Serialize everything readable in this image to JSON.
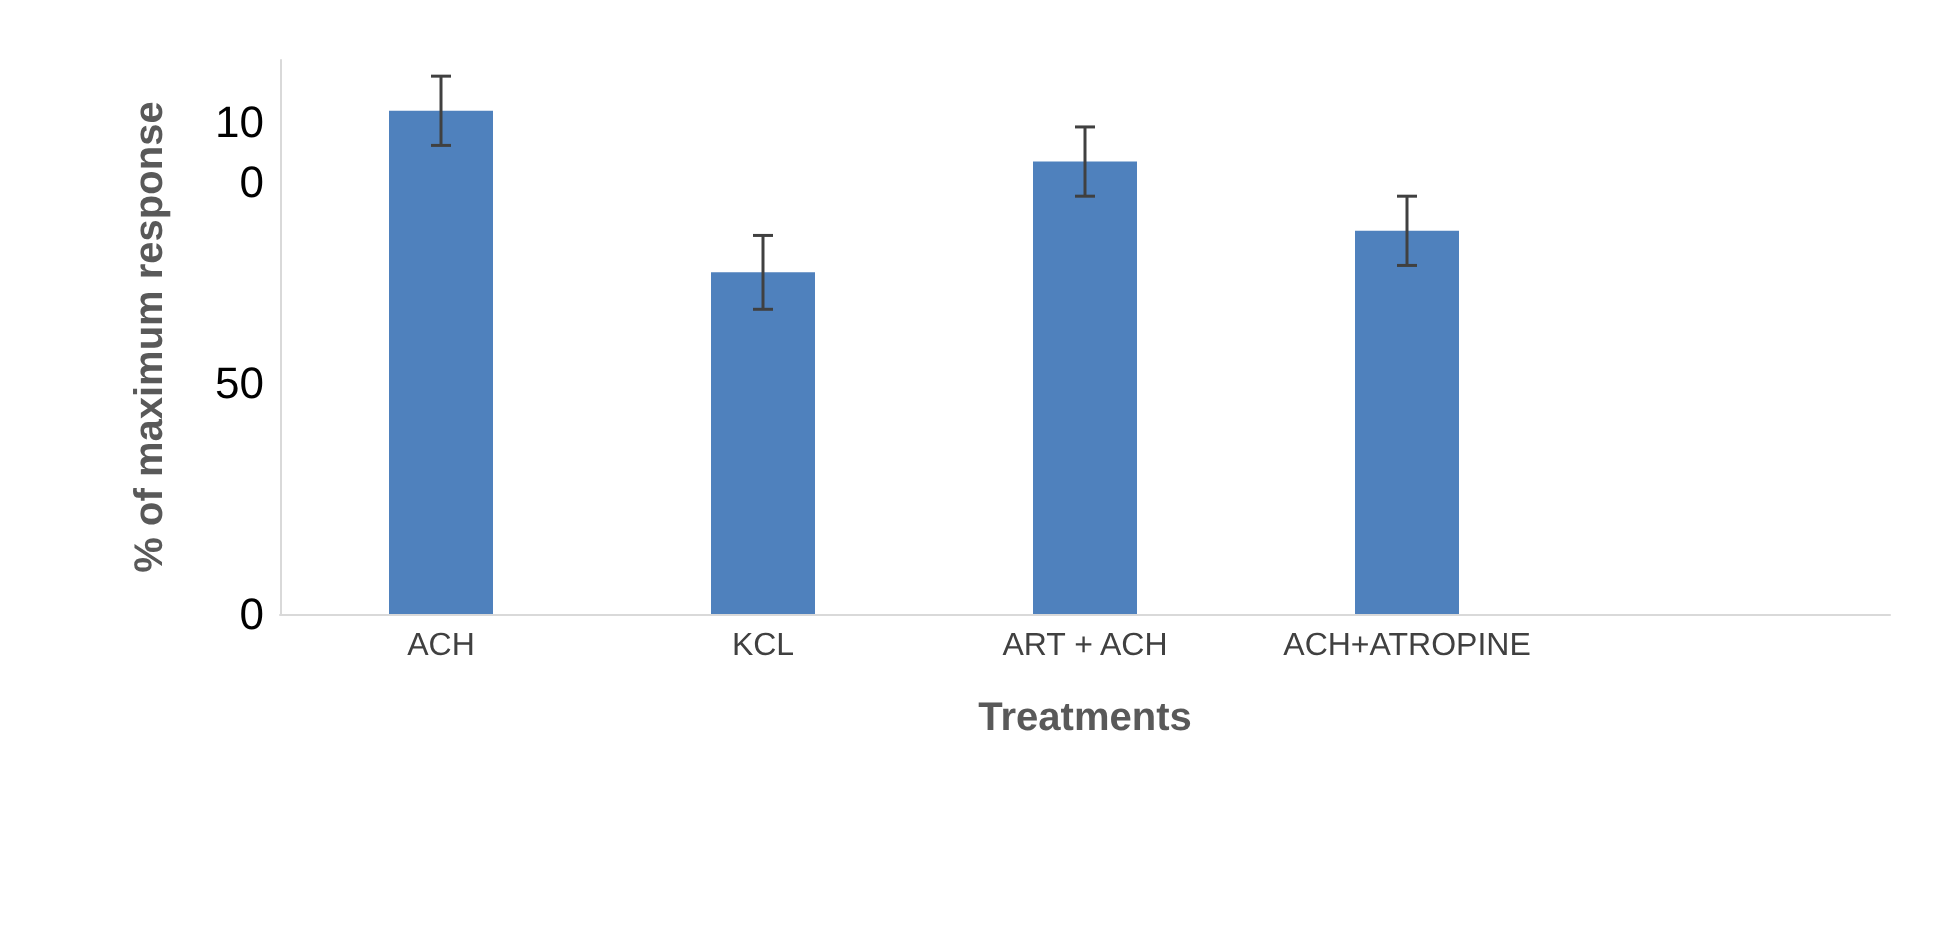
{
  "chart_data": {
    "type": "bar",
    "xlabel": "Treatments",
    "ylabel": "% of maximum response",
    "categories": [
      "ACH",
      "KCL",
      "ART + ACH",
      "ACH+ATROPINE",
      null
    ],
    "values": [
      109,
      74,
      98,
      83,
      null
    ],
    "errors": [
      7.5,
      8,
      7.5,
      7.5,
      null
    ],
    "color": "#4f81bd",
    "ylim": [
      0,
      120
    ],
    "yticks": [
      0,
      50,
      100
    ],
    "grid": false
  }
}
